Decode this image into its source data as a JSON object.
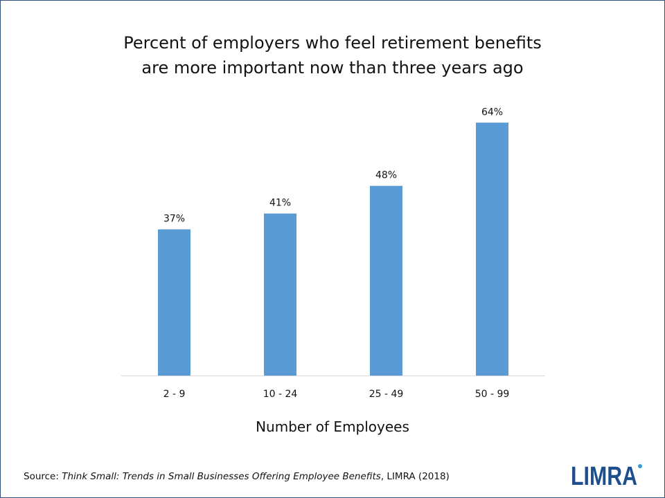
{
  "chart_data": {
    "type": "bar",
    "title_lines": [
      "Percent of employers who feel retirement benefits",
      "are more important now than three years ago"
    ],
    "categories": [
      "2 - 9",
      "10 - 24",
      "25 - 49",
      "50 - 99"
    ],
    "values": [
      37,
      41,
      48,
      64
    ],
    "data_labels": [
      "37%",
      "41%",
      "48%",
      "64%"
    ],
    "xlabel": "Number of Employees",
    "ylabel": "",
    "ylim": [
      0,
      70
    ],
    "grid": false,
    "bar_color": "#5b9bd5",
    "axis_color": "#d9d9d9"
  },
  "footer": {
    "source_prefix": "Source: ",
    "source_title": "Think Small: Trends in Small Businesses Offering Employee Benefits",
    "source_suffix": ", LIMRA (2018)"
  },
  "logo": {
    "text": "LIMRA",
    "color": "#1f4e8c",
    "accent": "#3a9ad9"
  },
  "colors": {
    "frame": "#2f4f7f"
  }
}
